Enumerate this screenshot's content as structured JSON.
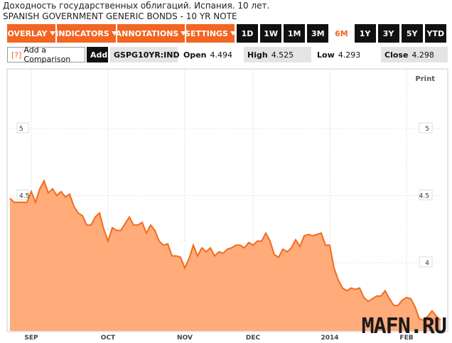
{
  "header": {
    "title": "Доходность государственных облигаций. Испания. 10 лет.",
    "subtitle": "SPANISH GOVERNMENT GENERIC BONDS - 10 YR NOTE"
  },
  "toolbar": {
    "menus": [
      "OVERLAY",
      "INDICATORS",
      "ANNOTATIONS",
      "SETTINGS"
    ],
    "ranges": [
      "1D",
      "1W",
      "1M",
      "3M",
      "6M",
      "1Y",
      "3Y",
      "5Y",
      "YTD"
    ],
    "active_range": 4
  },
  "quote": {
    "help": "[?]",
    "comparison": "Add a Comparison",
    "add": "Add",
    "ticker": "GSPG10YR:IND",
    "fields": [
      {
        "label": "Open",
        "value": 4.494
      },
      {
        "label": "High",
        "value": 4.525
      },
      {
        "label": "Low",
        "value": 4.293
      },
      {
        "label": "Close",
        "value": 4.298
      }
    ]
  },
  "print": "Print",
  "watermark": "MAFN.RU",
  "chart_data": {
    "type": "area",
    "color": "#f26b1d",
    "fill": "#ffab7a",
    "categories": [
      null,
      null,
      null,
      null,
      null,
      "SEP",
      null,
      null,
      null,
      null,
      null,
      null,
      null,
      null,
      null,
      null,
      null,
      null,
      null,
      null,
      null,
      null,
      null,
      "OCT",
      null,
      null,
      null,
      null,
      null,
      null,
      null,
      null,
      null,
      null,
      null,
      null,
      null,
      null,
      null,
      null,
      null,
      "NOV",
      null,
      null,
      null,
      null,
      null,
      null,
      null,
      null,
      null,
      null,
      null,
      null,
      null,
      null,
      null,
      "DEC",
      null,
      null,
      null,
      null,
      null,
      null,
      null,
      null,
      null,
      null,
      null,
      null,
      null,
      null,
      null,
      null,
      null,
      "2014",
      null,
      null,
      null,
      null,
      null,
      null,
      null,
      null,
      null,
      null,
      null,
      null,
      null,
      null,
      null,
      null,
      null,
      "FEB",
      null,
      null,
      null,
      null,
      null,
      null,
      null,
      null
    ],
    "values": [
      4.48,
      4.45,
      4.45,
      4.45,
      4.45,
      4.53,
      4.45,
      4.55,
      4.61,
      4.52,
      4.55,
      4.5,
      4.53,
      4.49,
      4.51,
      4.42,
      4.37,
      4.35,
      4.28,
      4.28,
      4.34,
      4.37,
      4.25,
      4.16,
      4.26,
      4.24,
      4.24,
      4.29,
      4.34,
      4.28,
      4.28,
      4.3,
      4.22,
      4.28,
      4.24,
      4.16,
      4.13,
      4.14,
      4.05,
      4.05,
      4.04,
      3.96,
      4.03,
      4.13,
      4.05,
      4.11,
      4.08,
      4.11,
      4.05,
      4.08,
      4.07,
      4.1,
      4.11,
      4.13,
      4.13,
      4.11,
      4.15,
      4.13,
      4.16,
      4.16,
      4.22,
      4.16,
      4.06,
      4.04,
      4.1,
      4.08,
      4.11,
      4.17,
      4.12,
      4.2,
      4.21,
      4.2,
      4.21,
      4.22,
      4.13,
      4.13,
      3.96,
      3.87,
      3.81,
      3.79,
      3.81,
      3.8,
      3.81,
      3.74,
      3.71,
      3.73,
      3.75,
      3.75,
      3.79,
      3.73,
      3.68,
      3.68,
      3.72,
      3.74,
      3.73,
      3.67,
      3.58,
      3.57,
      3.6,
      3.64,
      3.6,
      3.57
    ],
    "ylim": [
      3.49,
      5.44
    ],
    "yticks": [
      4,
      4.5,
      5
    ],
    "grid": true
  }
}
